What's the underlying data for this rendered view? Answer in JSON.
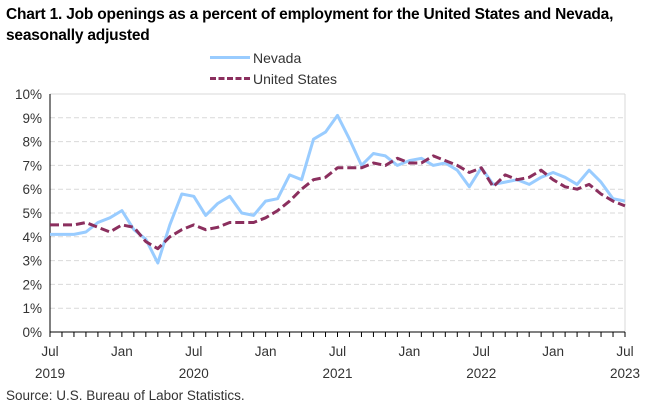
{
  "chart_data": {
    "type": "line",
    "title": "Chart 1. Job openings as a percent of employment for the United States and Nevada, seasonally adjusted",
    "xlabel": "",
    "ylabel": "",
    "ylim": [
      0,
      10
    ],
    "y_ticks": [
      "0%",
      "1%",
      "2%",
      "3%",
      "4%",
      "5%",
      "6%",
      "7%",
      "8%",
      "9%",
      "10%"
    ],
    "x_ticks": [
      {
        "month_index": 0,
        "label": "Jul",
        "year": "2019"
      },
      {
        "month_index": 6,
        "label": "Jan",
        "year": ""
      },
      {
        "month_index": 12,
        "label": "Jul",
        "year": "2020"
      },
      {
        "month_index": 18,
        "label": "Jan",
        "year": ""
      },
      {
        "month_index": 24,
        "label": "Jul",
        "year": "2021"
      },
      {
        "month_index": 30,
        "label": "Jan",
        "year": ""
      },
      {
        "month_index": 36,
        "label": "Jul",
        "year": "2022"
      },
      {
        "month_index": 42,
        "label": "Jan",
        "year": ""
      },
      {
        "month_index": 48,
        "label": "Jul",
        "year": "2023"
      }
    ],
    "x_start": "Jul 2019",
    "x_end": "Jul 2023",
    "grid": true,
    "legend_placement": "top-center",
    "series": [
      {
        "name": "Nevada",
        "color": "#99ccff",
        "style": "solid",
        "values": [
          4.1,
          4.1,
          4.1,
          4.2,
          4.6,
          4.8,
          5.1,
          4.3,
          3.9,
          2.9,
          4.5,
          5.8,
          5.7,
          4.9,
          5.4,
          5.7,
          5.0,
          4.9,
          5.5,
          5.6,
          6.6,
          6.4,
          8.1,
          8.4,
          9.1,
          8.1,
          7.0,
          7.5,
          7.4,
          7.0,
          7.2,
          7.3,
          7.0,
          7.1,
          6.8,
          6.1,
          6.9,
          6.2,
          6.3,
          6.4,
          6.2,
          6.5,
          6.7,
          6.5,
          6.2,
          6.8,
          6.3,
          5.6,
          5.5
        ]
      },
      {
        "name": "United States",
        "color": "#8b2f5e",
        "style": "dashed",
        "values": [
          4.5,
          4.5,
          4.5,
          4.6,
          4.4,
          4.2,
          4.5,
          4.4,
          3.8,
          3.5,
          4.0,
          4.3,
          4.5,
          4.3,
          4.4,
          4.6,
          4.6,
          4.6,
          4.8,
          5.1,
          5.5,
          6.0,
          6.4,
          6.5,
          6.9,
          6.9,
          6.9,
          7.1,
          7.0,
          7.3,
          7.1,
          7.1,
          7.4,
          7.2,
          7.0,
          6.7,
          6.9,
          6.1,
          6.6,
          6.4,
          6.5,
          6.8,
          6.4,
          6.1,
          6.0,
          6.2,
          5.8,
          5.5,
          5.3
        ]
      }
    ]
  },
  "source": "Source: U.S. Bureau of Labor Statistics."
}
